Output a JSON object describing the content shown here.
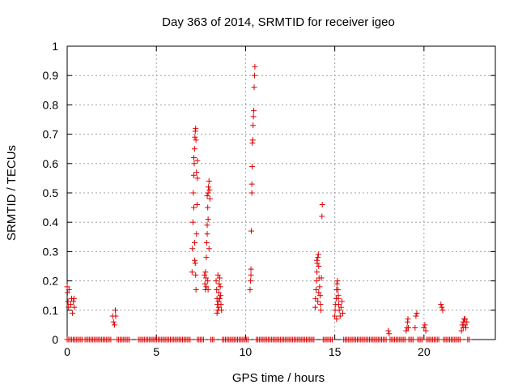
{
  "chart_data": {
    "type": "scatter",
    "title": "Day 363 of 2014, SRMTID for receiver igeo",
    "xlabel": "GPS time / hours",
    "ylabel": "SRMTID / TECUs",
    "xlim": [
      0,
      24
    ],
    "ylim": [
      0,
      1
    ],
    "x_ticks": [
      0,
      5,
      10,
      15,
      20
    ],
    "y_ticks": [
      0,
      0.1,
      0.2,
      0.3,
      0.4,
      0.5,
      0.6,
      0.7,
      0.8,
      0.9,
      1
    ],
    "x_tick_labels": [
      "0",
      "5",
      "10",
      "15",
      "20"
    ],
    "y_tick_labels": [
      "0",
      "0.1",
      "0.2",
      "0.3",
      "0.4",
      "0.5",
      "0.6",
      "0.7",
      "0.8",
      "0.9",
      "1"
    ],
    "grid": true,
    "marker": "+",
    "marker_color": "#dd0000",
    "series": [
      {
        "name": "SRMTID",
        "points": [
          [
            0.0,
            0.18
          ],
          [
            0.02,
            0.16
          ],
          [
            0.05,
            0.13
          ],
          [
            0.08,
            0.11
          ],
          [
            0.1,
            0.17
          ],
          [
            0.2,
            0.12
          ],
          [
            0.25,
            0.14
          ],
          [
            0.3,
            0.09
          ],
          [
            0.35,
            0.13
          ],
          [
            0.4,
            0.11
          ],
          [
            0.38,
            0.14
          ],
          [
            2.55,
            0.08
          ],
          [
            2.6,
            0.06
          ],
          [
            2.65,
            0.05
          ],
          [
            2.7,
            0.1
          ],
          [
            2.72,
            0.08
          ],
          [
            7.0,
            0.23
          ],
          [
            7.02,
            0.31
          ],
          [
            7.05,
            0.4
          ],
          [
            7.07,
            0.5
          ],
          [
            7.1,
            0.56
          ],
          [
            7.12,
            0.6
          ],
          [
            7.14,
            0.65
          ],
          [
            7.16,
            0.69
          ],
          [
            7.18,
            0.71
          ],
          [
            7.2,
            0.72
          ],
          [
            7.22,
            0.68
          ],
          [
            7.1,
            0.45
          ],
          [
            7.15,
            0.33
          ],
          [
            7.18,
            0.26
          ],
          [
            7.2,
            0.22
          ],
          [
            7.22,
            0.17
          ],
          [
            7.25,
            0.36
          ],
          [
            7.28,
            0.46
          ],
          [
            7.3,
            0.55
          ],
          [
            7.1,
            0.62
          ],
          [
            7.25,
            0.57
          ],
          [
            7.15,
            0.27
          ],
          [
            7.3,
            0.61
          ],
          [
            7.7,
            0.22
          ],
          [
            7.72,
            0.19
          ],
          [
            7.75,
            0.17
          ],
          [
            7.78,
            0.21
          ],
          [
            7.8,
            0.28
          ],
          [
            7.82,
            0.33
          ],
          [
            7.85,
            0.39
          ],
          [
            7.88,
            0.45
          ],
          [
            7.9,
            0.5
          ],
          [
            7.92,
            0.52
          ],
          [
            7.95,
            0.54
          ],
          [
            7.98,
            0.51
          ],
          [
            8.0,
            0.48
          ],
          [
            7.85,
            0.36
          ],
          [
            7.9,
            0.41
          ],
          [
            7.8,
            0.18
          ],
          [
            7.75,
            0.23
          ],
          [
            7.95,
            0.31
          ],
          [
            7.85,
            0.49
          ],
          [
            7.88,
            0.2
          ],
          [
            7.9,
            0.17
          ],
          [
            8.35,
            0.2
          ],
          [
            8.38,
            0.17
          ],
          [
            8.4,
            0.14
          ],
          [
            8.42,
            0.12
          ],
          [
            8.45,
            0.1
          ],
          [
            8.48,
            0.13
          ],
          [
            8.5,
            0.16
          ],
          [
            8.52,
            0.19
          ],
          [
            8.55,
            0.21
          ],
          [
            8.58,
            0.18
          ],
          [
            8.6,
            0.15
          ],
          [
            8.62,
            0.12
          ],
          [
            8.65,
            0.1
          ],
          [
            8.45,
            0.22
          ],
          [
            8.4,
            0.09
          ],
          [
            8.55,
            0.14
          ],
          [
            8.5,
            0.11
          ],
          [
            10.25,
            0.17
          ],
          [
            10.28,
            0.2
          ],
          [
            10.3,
            0.24
          ],
          [
            10.32,
            0.37
          ],
          [
            10.35,
            0.5
          ],
          [
            10.37,
            0.59
          ],
          [
            10.38,
            0.67
          ],
          [
            10.4,
            0.68
          ],
          [
            10.42,
            0.73
          ],
          [
            10.44,
            0.76
          ],
          [
            10.46,
            0.78
          ],
          [
            10.48,
            0.86
          ],
          [
            10.5,
            0.9
          ],
          [
            10.52,
            0.93
          ],
          [
            10.35,
            0.53
          ],
          [
            10.3,
            0.22
          ],
          [
            13.9,
            0.11
          ],
          [
            13.92,
            0.14
          ],
          [
            13.95,
            0.17
          ],
          [
            13.98,
            0.2
          ],
          [
            14.0,
            0.23
          ],
          [
            14.02,
            0.26
          ],
          [
            14.05,
            0.28
          ],
          [
            14.08,
            0.29
          ],
          [
            14.1,
            0.25
          ],
          [
            14.12,
            0.21
          ],
          [
            14.15,
            0.18
          ],
          [
            14.18,
            0.15
          ],
          [
            14.2,
            0.12
          ],
          [
            14.22,
            0.1
          ],
          [
            14.25,
            0.21
          ],
          [
            14.28,
            0.42
          ],
          [
            14.3,
            0.46
          ],
          [
            14.0,
            0.27
          ],
          [
            14.1,
            0.16
          ],
          [
            14.05,
            0.13
          ],
          [
            15.0,
            0.08
          ],
          [
            15.02,
            0.1
          ],
          [
            15.05,
            0.12
          ],
          [
            15.08,
            0.14
          ],
          [
            15.1,
            0.17
          ],
          [
            15.12,
            0.19
          ],
          [
            15.15,
            0.2
          ],
          [
            15.18,
            0.17
          ],
          [
            15.2,
            0.14
          ],
          [
            15.22,
            0.12
          ],
          [
            15.25,
            0.1
          ],
          [
            15.3,
            0.08
          ],
          [
            15.35,
            0.11
          ],
          [
            15.4,
            0.13
          ],
          [
            15.45,
            0.09
          ],
          [
            15.1,
            0.07
          ],
          [
            15.2,
            0.15
          ],
          [
            18.0,
            0.03
          ],
          [
            18.05,
            0.02
          ],
          [
            19.0,
            0.03
          ],
          [
            19.05,
            0.04
          ],
          [
            19.08,
            0.06
          ],
          [
            19.1,
            0.07
          ],
          [
            19.12,
            0.04
          ],
          [
            19.5,
            0.04
          ],
          [
            19.55,
            0.08
          ],
          [
            19.6,
            0.09
          ],
          [
            20.0,
            0.04
          ],
          [
            20.05,
            0.05
          ],
          [
            20.1,
            0.03
          ],
          [
            20.95,
            0.12
          ],
          [
            21.0,
            0.11
          ],
          [
            21.05,
            0.1
          ],
          [
            22.1,
            0.03
          ],
          [
            22.15,
            0.05
          ],
          [
            22.2,
            0.06
          ],
          [
            22.25,
            0.07
          ],
          [
            22.3,
            0.05
          ],
          [
            22.35,
            0.04
          ],
          [
            22.4,
            0.06
          ],
          [
            22.2,
            0.04
          ],
          [
            22.3,
            0.07
          ]
        ]
      }
    ],
    "zero_runs": [
      [
        0.0,
        0.9
      ],
      [
        1.0,
        2.5
      ],
      [
        2.8,
        3.5
      ],
      [
        4.0,
        6.9
      ],
      [
        7.3,
        7.65
      ],
      [
        8.05,
        8.3
      ],
      [
        8.7,
        10.2
      ],
      [
        10.6,
        13.85
      ],
      [
        14.35,
        14.9
      ],
      [
        15.5,
        17.9
      ],
      [
        18.1,
        18.95
      ],
      [
        19.15,
        19.45
      ],
      [
        19.65,
        19.95
      ],
      [
        20.15,
        20.9
      ],
      [
        21.1,
        22.05
      ],
      [
        22.45,
        22.6
      ]
    ],
    "zero_step": 0.085
  }
}
